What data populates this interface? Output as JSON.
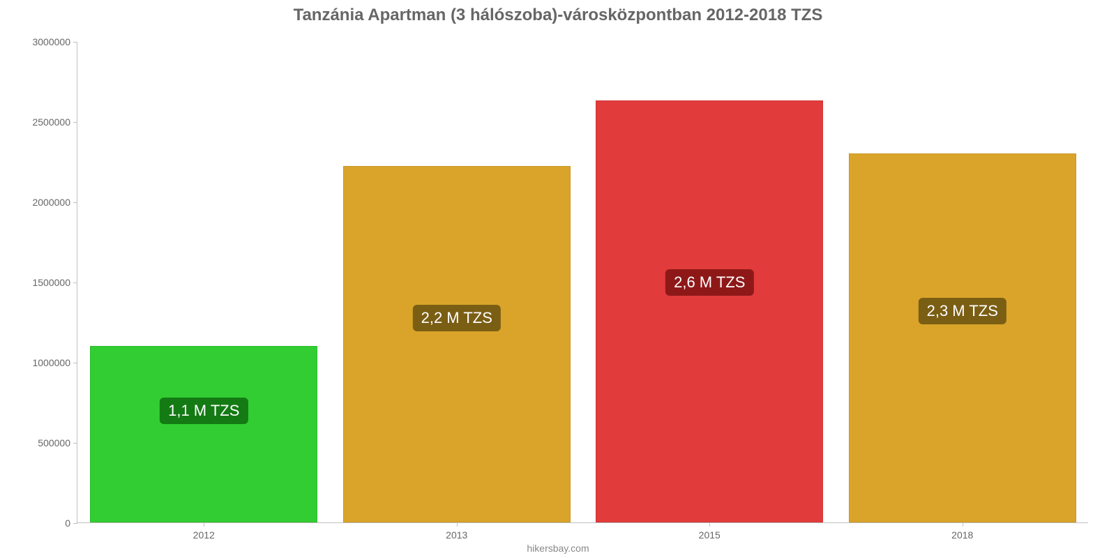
{
  "chart": {
    "type": "bar",
    "title": "Tanzánia Apartman (3 hálószoba)-városközpontban 2012-2018 TZS",
    "title_fontsize": 24,
    "title_color": "#666666",
    "footer": "hikersbay.com",
    "footer_fontsize": 14,
    "footer_color": "#888888",
    "background_color": "#ffffff",
    "axis_color": "#c0c0c0",
    "tick_fontsize": 14,
    "tick_color": "#666666",
    "ylim": [
      0,
      3000000
    ],
    "yticks": [
      0,
      500000,
      1000000,
      1500000,
      2000000,
      2500000,
      3000000
    ],
    "categories": [
      "2012",
      "2013",
      "2015",
      "2018"
    ],
    "values": [
      1100000,
      2220000,
      2630000,
      2300000
    ],
    "bar_colors": [
      "#32cd32",
      "#d9a429",
      "#e23b3b",
      "#d9a429"
    ],
    "bar_labels": [
      "1,1 M TZS",
      "2,2 M TZS",
      "2,6 M TZS",
      "2,3 M TZS"
    ],
    "bar_label_bg": [
      "#147a14",
      "#7a5e14",
      "#8e1818",
      "#7a5e14"
    ],
    "bar_label_fg": [
      "#ffffff",
      "#ffffff",
      "#ffffff",
      "#ffffff"
    ],
    "bar_label_fontsize": 22,
    "bar_width_ratio": 0.9,
    "bar_label_y_value": [
      700000,
      1280000,
      1500000,
      1320000
    ]
  }
}
